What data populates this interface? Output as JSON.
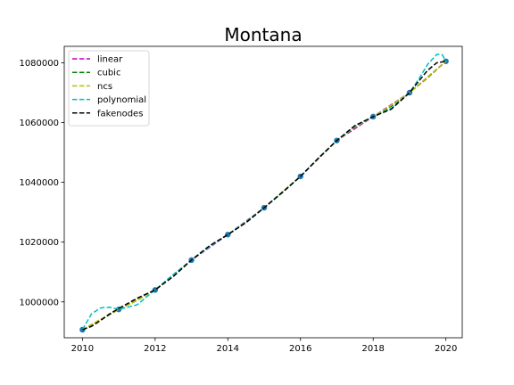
{
  "chart_data": {
    "type": "line",
    "title": "Montana",
    "xlabel": "",
    "ylabel": "",
    "xlim": [
      2009.5,
      2020.45
    ],
    "ylim": [
      988000,
      1085500
    ],
    "x_ticks": [
      2010,
      2012,
      2014,
      2016,
      2018,
      2020
    ],
    "x_tick_labels": [
      "2010",
      "2012",
      "2014",
      "2016",
      "2018",
      "2020"
    ],
    "y_ticks": [
      1000000,
      1020000,
      1040000,
      1060000,
      1080000
    ],
    "y_tick_labels": [
      "1000000",
      "1020000",
      "1040000",
      "1060000",
      "1080000"
    ],
    "grid": false,
    "legend_position": "top-left",
    "points": {
      "x": [
        2010,
        2011,
        2012,
        2013,
        2014,
        2015,
        2016,
        2017,
        2018,
        2019,
        2020
      ],
      "y": [
        990700,
        997500,
        1004000,
        1014000,
        1022500,
        1031500,
        1042000,
        1054000,
        1062000,
        1070000,
        1080500
      ],
      "color": "#1f77b4"
    },
    "series": [
      {
        "name": "linear",
        "color": "#bf00bf",
        "x": [
          2010,
          2011,
          2012,
          2013,
          2014,
          2015,
          2016,
          2017,
          2018,
          2019,
          2020
        ],
        "y": [
          990700,
          997500,
          1004000,
          1014000,
          1022500,
          1031500,
          1042000,
          1054000,
          1062000,
          1070000,
          1080500
        ]
      },
      {
        "name": "cubic",
        "color": "#008000",
        "x": [
          2010,
          2010.5,
          2011,
          2011.5,
          2012,
          2012.5,
          2013,
          2013.5,
          2014,
          2014.5,
          2015,
          2015.5,
          2016,
          2016.5,
          2017,
          2017.5,
          2018,
          2018.5,
          2019,
          2019.5,
          2020
        ],
        "y": [
          990700,
          994000,
          997500,
          1000500,
          1004000,
          1008800,
          1014000,
          1018600,
          1022500,
          1026800,
          1031500,
          1036800,
          1042000,
          1048000,
          1054000,
          1058600,
          1062000,
          1065500,
          1070000,
          1075000,
          1080500
        ]
      },
      {
        "name": "ncs",
        "color": "#bfbf00",
        "x": [
          2010,
          2010.5,
          2011,
          2011.5,
          2012,
          2012.5,
          2013,
          2013.5,
          2014,
          2014.5,
          2015,
          2015.5,
          2016,
          2016.5,
          2017,
          2017.5,
          2018,
          2018.5,
          2019,
          2019.5,
          2020
        ],
        "y": [
          990700,
          994200,
          997500,
          1000600,
          1004000,
          1008800,
          1014000,
          1018600,
          1022500,
          1026800,
          1031500,
          1036800,
          1042000,
          1048000,
          1054000,
          1058500,
          1062000,
          1065800,
          1070000,
          1075200,
          1080500
        ]
      },
      {
        "name": "polynomial",
        "color": "#00bfbf",
        "x": [
          2010,
          2010.25,
          2010.5,
          2010.75,
          2011,
          2011.5,
          2012,
          2012.5,
          2013,
          2013.5,
          2014,
          2014.5,
          2015,
          2015.5,
          2016,
          2016.5,
          2017,
          2017.5,
          2018,
          2018.5,
          2019,
          2019.25,
          2019.5,
          2019.75,
          2019.9,
          2020
        ],
        "y": [
          990700,
          996000,
          998000,
          998200,
          997500,
          999000,
          1004000,
          1009200,
          1014000,
          1018500,
          1022500,
          1026700,
          1031500,
          1036600,
          1042000,
          1048200,
          1054000,
          1058800,
          1062000,
          1064800,
          1070000,
          1074500,
          1079500,
          1082800,
          1082700,
          1080500
        ]
      },
      {
        "name": "fakenodes",
        "color": "#000000",
        "x": [
          2010,
          2010.25,
          2010.5,
          2010.75,
          2011,
          2011.5,
          2012,
          2012.5,
          2013,
          2013.5,
          2014,
          2014.5,
          2015,
          2015.5,
          2016,
          2016.5,
          2017,
          2017.5,
          2018,
          2018.5,
          2019,
          2019.25,
          2019.5,
          2019.75,
          2020
        ],
        "y": [
          990700,
          991800,
          993800,
          996000,
          997800,
          1001200,
          1004000,
          1008500,
          1014000,
          1018800,
          1022500,
          1026500,
          1031500,
          1036600,
          1042000,
          1048200,
          1054000,
          1059000,
          1062000,
          1064500,
          1070000,
          1073800,
          1077500,
          1080000,
          1080500
        ]
      }
    ]
  }
}
